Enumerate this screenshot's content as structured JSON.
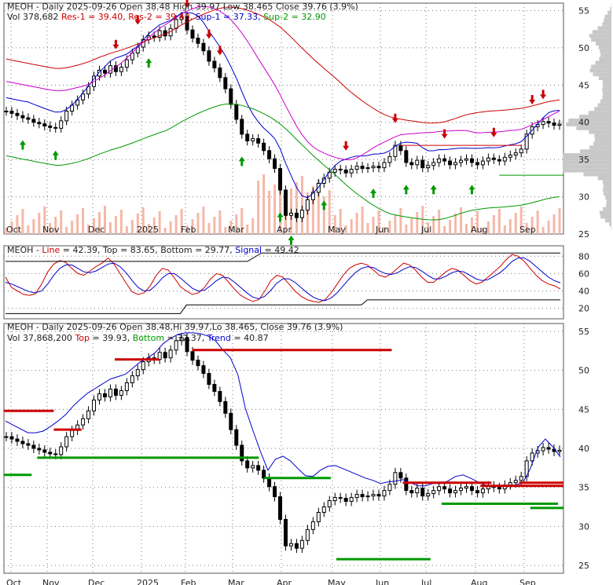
{
  "chart_data": [
    {
      "type": "candlestick",
      "panel": "price",
      "ticker": "MEOH",
      "header_line1": [
        {
          "text": "MEOH - Daily 2025-09-26 Open 38.48  High 39.97  Low 38.465  Close 39.76 (3.9%)",
          "color": "#222222"
        }
      ],
      "header_line2": [
        {
          "text": "Vol 378,682 ",
          "color": "#222222"
        },
        {
          "text": "Res-1 = 39.40, ",
          "color": "#cc0000"
        },
        {
          "text": "Res-2 = 39.40, ",
          "color": "#cc0000"
        },
        {
          "text": "Sup-1 = 37.33, ",
          "color": "#0000cc"
        },
        {
          "text": "Sup-2 = 32.90",
          "color": "#009900"
        }
      ],
      "open": 38.48,
      "high": 39.97,
      "low": 38.465,
      "close": 39.76,
      "change_pct": 3.9,
      "volume": 378682,
      "res1": 39.4,
      "res2": 39.4,
      "sup1": 37.33,
      "sup2": 32.9,
      "ylim": [
        25,
        56
      ],
      "yticks": [
        25,
        30,
        35,
        40,
        45,
        50,
        55
      ],
      "months": [
        "Oct",
        "Nov",
        "Dec",
        "2025",
        "Feb",
        "Mar",
        "Apr",
        "May",
        "Jun",
        "Jul",
        "Aug",
        "Sep"
      ],
      "close_series": [
        41.5,
        41.2,
        40.9,
        40.6,
        40.4,
        40.0,
        39.8,
        39.5,
        39.3,
        39.2,
        40.2,
        41.5,
        42.3,
        43.0,
        43.8,
        44.8,
        46.2,
        47.0,
        46.6,
        47.6,
        46.8,
        47.4,
        48.4,
        49.3,
        50.1,
        51.1,
        51.6,
        51.4,
        52.3,
        51.6,
        52.6,
        53.8,
        54.2,
        52.4,
        51.3,
        50.6,
        49.6,
        48.2,
        47.3,
        46.0,
        44.5,
        42.4,
        40.4,
        38.4,
        37.5,
        37.8,
        37.2,
        36.2,
        35.1,
        33.8,
        30.9,
        27.5,
        27.8,
        27.2,
        28.2,
        29.6,
        30.6,
        31.8,
        32.5,
        33.3,
        33.7,
        33.6,
        33.2,
        33.7,
        34.1,
        33.8,
        33.9,
        34.1,
        33.9,
        34.6,
        35.4,
        36.9,
        36.2,
        34.6,
        34.3,
        34.9,
        33.9,
        34.2,
        34.6,
        35.1,
        34.8,
        34.3,
        34.6,
        34.9,
        35.1,
        34.6,
        34.3,
        34.8,
        35.2,
        35.0,
        34.8,
        35.3,
        35.6,
        35.9,
        36.4,
        38.4,
        39.4,
        39.7,
        40.1,
        39.9,
        39.6,
        39.76
      ],
      "upper_band": [
        43.5,
        43.0,
        42.5,
        42.0,
        42.0,
        42.2,
        42.8,
        43.5,
        44.3,
        45.4,
        46.3,
        47.1,
        47.7,
        48.3,
        48.9,
        49.2,
        49.5,
        50.3,
        51.1,
        51.6,
        52.3,
        53.4,
        54.1,
        54.6,
        54.8,
        54.8,
        54.7,
        54.4,
        53.8,
        52.6,
        51.6,
        49.4,
        45.1,
        42.3,
        39.6,
        37.2,
        38.6,
        39.0,
        38.4,
        37.4,
        36.5,
        36.4,
        37.2,
        37.7,
        37.8,
        37.4,
        37.0,
        36.6,
        36.2,
        35.9,
        35.5,
        35.7,
        35.8,
        36.0,
        35.6,
        35.2,
        35.2,
        35.5,
        35.5,
        35.8,
        36.4,
        36.6,
        36.2,
        35.7,
        35.3,
        35.2,
        35.2,
        35.3,
        35.3,
        35.6,
        37.4,
        40.1,
        41.2,
        40.2,
        38.9
      ],
      "upper_band_x0": 0.0,
      "oscillator": {
        "header": [
          {
            "text": "MEOH - ",
            "color": "#222222"
          },
          {
            "text": "Line",
            "color": "#cc0000"
          },
          {
            "text": " = 42.39, Top = 83.65, Bottom = 29.77, ",
            "color": "#222222"
          },
          {
            "text": "Signal",
            "color": "#0000cc"
          },
          {
            "text": " = 49.42",
            "color": "#222222"
          }
        ],
        "line": 42.39,
        "top": 83.65,
        "bottom": 29.77,
        "signal": 49.42,
        "ylim": [
          8,
          92
        ],
        "yticks": [
          20,
          40,
          60,
          80
        ],
        "line_series": [
          56,
          44,
          40,
          36,
          35,
          37,
          48,
          62,
          71,
          75,
          73,
          66,
          60,
          58,
          63,
          68,
          72,
          78,
          71,
          60,
          49,
          39,
          36,
          38,
          46,
          58,
          66,
          64,
          55,
          45,
          40,
          36,
          38,
          44,
          54,
          60,
          58,
          50,
          42,
          35,
          31,
          28,
          30,
          40,
          52,
          58,
          56,
          48,
          40,
          34,
          30,
          28,
          27,
          30,
          38,
          48,
          58,
          66,
          70,
          72,
          70,
          64,
          58,
          56,
          60,
          66,
          72,
          70,
          64,
          56,
          50,
          50,
          56,
          62,
          66,
          64,
          58,
          52,
          48,
          50,
          56,
          62,
          68,
          76,
          82,
          80,
          74,
          66,
          58,
          52,
          48,
          46,
          42.39
        ],
        "signal_series": [
          50,
          48,
          45,
          42,
          39,
          38,
          40,
          48,
          58,
          66,
          70,
          70,
          66,
          62,
          61,
          63,
          67,
          71,
          72,
          68,
          61,
          52,
          44,
          40,
          41,
          47,
          55,
          60,
          60,
          55,
          49,
          43,
          40,
          41,
          46,
          52,
          56,
          55,
          50,
          44,
          38,
          33,
          31,
          34,
          41,
          49,
          54,
          54,
          50,
          44,
          38,
          33,
          30,
          29,
          32,
          38,
          46,
          54,
          61,
          66,
          68,
          67,
          63,
          60,
          59,
          61,
          65,
          68,
          67,
          63,
          58,
          54,
          54,
          57,
          61,
          63,
          62,
          58,
          54,
          52,
          53,
          57,
          61,
          67,
          74,
          78,
          78,
          74,
          68,
          62,
          56,
          52,
          49.42
        ],
        "top_series": [
          74,
          74,
          74,
          74,
          74,
          74,
          74,
          74,
          74,
          74,
          74,
          74,
          74,
          74,
          74,
          74,
          74,
          74,
          83.65,
          83.65,
          83.65,
          83.65,
          83.65,
          83.65,
          83.65,
          83.65,
          83.65,
          83.65,
          83.65,
          83.65,
          83.65,
          83.65,
          83.65,
          83.65,
          83.65,
          83.65,
          83.65,
          83.65,
          83.65,
          83.65
        ],
        "bottom_series": [
          14,
          14,
          14,
          14,
          14,
          14,
          14,
          14,
          14,
          14,
          14,
          14,
          14,
          14,
          14,
          14,
          14,
          14,
          14,
          14,
          14,
          14,
          14,
          14,
          14,
          14,
          14,
          14,
          14,
          14,
          24,
          24,
          24,
          24,
          24,
          24,
          24,
          24,
          24,
          24,
          24,
          24,
          24,
          24,
          24,
          24,
          24,
          24,
          24,
          24,
          24,
          24,
          24,
          24,
          24,
          24,
          24,
          24,
          24,
          24,
          29.77,
          29.77,
          29.77,
          29.77,
          29.77,
          29.77,
          29.77,
          29.77,
          29.77,
          29.77,
          29.77,
          29.77,
          29.77,
          29.77,
          29.77,
          29.77,
          29.77,
          29.77,
          29.77,
          29.77,
          29.77,
          29.77,
          29.77,
          29.77,
          29.77,
          29.77,
          29.77,
          29.77,
          29.77,
          29.77,
          29.77,
          29.77,
          29.77
        ]
      }
    },
    {
      "type": "candlestick",
      "panel": "price-lower",
      "header_line1": [
        {
          "text": "MEOH - Daily 2025-09-26 Open 38.48,Hi 39.97,Lo 38.465, Close 39.76 (3.9%)",
          "color": "#222222"
        }
      ],
      "header_line2": [
        {
          "text": "Vol 37,868,200 ",
          "color": "#222222"
        },
        {
          "text": "Top",
          "color": "#cc0000"
        },
        {
          "text": " = 39.93, ",
          "color": "#222222"
        },
        {
          "text": "Bottom",
          "color": "#009900"
        },
        {
          "text": " = 32.37, ",
          "color": "#222222"
        },
        {
          "text": "Trend",
          "color": "#0000cc"
        },
        {
          "text": " = 40.87",
          "color": "#222222"
        }
      ],
      "volume": 37868200,
      "top": 39.93,
      "bottom": 32.37,
      "trend": 40.87,
      "ylim": [
        24,
        56
      ],
      "yticks": [
        25,
        30,
        35,
        40,
        45,
        50,
        55
      ],
      "months": [
        "Oct",
        "Nov",
        "Dec",
        "2025",
        "Feb",
        "Mar",
        "Apr",
        "May",
        "Jun",
        "Jul",
        "Aug",
        "Sep"
      ]
    }
  ]
}
